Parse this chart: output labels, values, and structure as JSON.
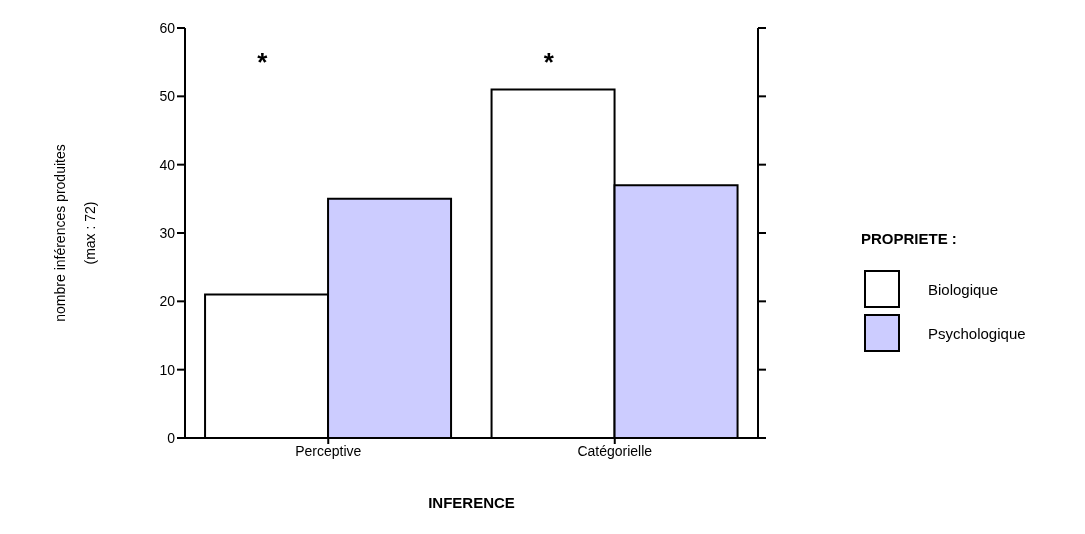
{
  "chart_data": {
    "type": "bar",
    "xlabel": "INFERENCE",
    "ylabel": "nombre inférences produites\n(max : 72)",
    "legend_title": "PROPRIETE :",
    "categories": [
      "Perceptive",
      "Catégorielle"
    ],
    "series": [
      {
        "name": "Biologique",
        "color": "#ffffff",
        "values": [
          21,
          51
        ]
      },
      {
        "name": "Psychologique",
        "color": "#ccccff",
        "values": [
          35,
          37
        ]
      }
    ],
    "ylim": [
      0,
      60
    ],
    "yticks": [
      0,
      10,
      20,
      30,
      40,
      50,
      60
    ],
    "grid": false,
    "legend": "right",
    "annotations": [
      "*",
      "*"
    ]
  }
}
